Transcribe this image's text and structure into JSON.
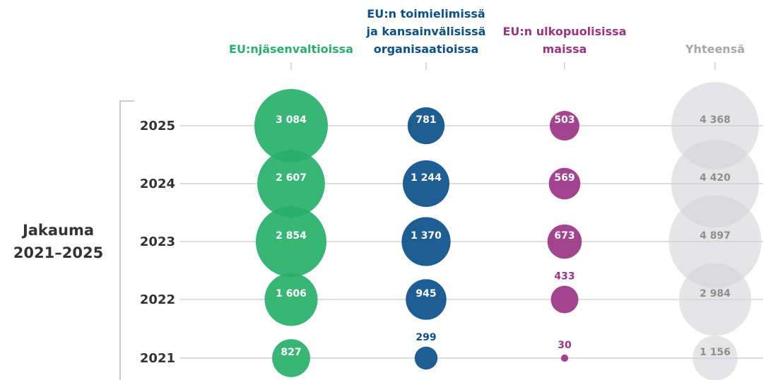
{
  "chart_data": {
    "type": "bubble",
    "title": "Jakauma\n2021–2025",
    "categories": [
      "2025",
      "2024",
      "2023",
      "2022",
      "2021"
    ],
    "series": [
      {
        "name": "EU:njäsenvaltioissa",
        "color": "#27b06a",
        "values": [
          3084,
          2607,
          2854,
          1606,
          827
        ],
        "value_labels": [
          "3 084",
          "2 607",
          "2 854",
          "1 606",
          "827"
        ]
      },
      {
        "name": "EU:n toimielimissä\nja kansainvälisissä\norganisaatioissa",
        "color": "#0b5089",
        "values": [
          781,
          1244,
          1370,
          945,
          299
        ],
        "value_labels": [
          "781",
          "1 244",
          "1 370",
          "945",
          "299"
        ]
      },
      {
        "name": "EU:n ulkopuolisissa\nmaissa",
        "color": "#9a3584",
        "values": [
          503,
          569,
          673,
          433,
          30
        ],
        "value_labels": [
          "503",
          "569",
          "673",
          "433",
          "30"
        ]
      },
      {
        "name": "Yhteensä",
        "color": "#d4d4d8",
        "values": [
          4368,
          4420,
          4897,
          2984,
          1156
        ],
        "value_labels": [
          "4 368",
          "4 420",
          "4 897",
          "2 984",
          "1 156"
        ]
      }
    ]
  }
}
